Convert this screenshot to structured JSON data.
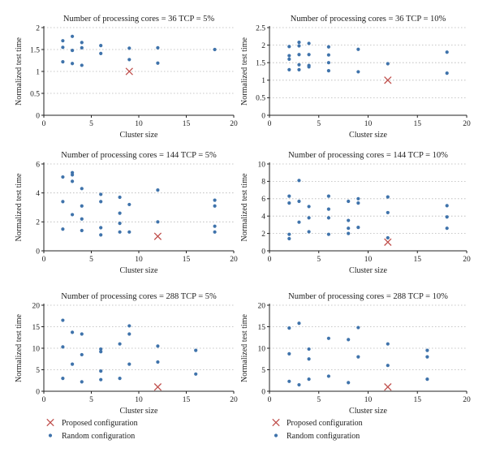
{
  "colors": {
    "random": "#3f73ab",
    "proposed": "#c0504d",
    "grid": "#b5b5b5",
    "axis": "#222222"
  },
  "legend": {
    "left": [
      {
        "marker": "cross",
        "label": "Proposed configuration"
      },
      {
        "marker": "dot",
        "label": "Random configuration"
      }
    ],
    "right": [
      {
        "marker": "cross",
        "label": "Proposed configuration"
      },
      {
        "marker": "dot",
        "label": "Random configuration"
      }
    ]
  },
  "chart_data": [
    {
      "type": "scatter",
      "title": "Number of processing cores = 36 TCP = 5%",
      "xlabel": "Cluster size",
      "ylabel": "Normalized test time",
      "xlim": [
        0,
        20
      ],
      "ylim": [
        0,
        2
      ],
      "xticks": [
        0,
        5,
        10,
        15,
        20
      ],
      "yticks": [
        0,
        0.5,
        1,
        1.5,
        2
      ],
      "ytick_labels": [
        "0",
        "0.5",
        "1",
        "1.5",
        "2"
      ],
      "grid": "horizontal-dotted",
      "series": [
        {
          "marker": "dot",
          "points": [
            [
              2,
              1.7
            ],
            [
              2,
              1.55
            ],
            [
              2,
              1.22
            ],
            [
              3,
              1.8
            ],
            [
              3,
              1.48
            ],
            [
              3,
              1.18
            ],
            [
              4,
              1.66
            ],
            [
              4,
              1.54
            ],
            [
              4,
              1.14
            ],
            [
              6,
              1.59
            ],
            [
              6,
              1.41
            ],
            [
              9,
              1.53
            ],
            [
              9,
              1.27
            ],
            [
              12,
              1.54
            ],
            [
              12,
              1.19
            ],
            [
              18,
              1.5
            ]
          ]
        },
        {
          "marker": "cross",
          "points": [
            [
              9,
              1.0
            ]
          ]
        }
      ]
    },
    {
      "type": "scatter",
      "title": "Number of processing cores = 36 TCP = 10%",
      "xlabel": "Cluster size",
      "ylabel": "Normalized test time",
      "xlim": [
        0,
        20
      ],
      "ylim": [
        0,
        2.5
      ],
      "xticks": [
        0,
        5,
        10,
        15,
        20
      ],
      "yticks": [
        0,
        0.5,
        1,
        1.5,
        2,
        2.5
      ],
      "ytick_labels": [
        "0",
        "0.5",
        "1",
        "1.5",
        "2",
        "2.5"
      ],
      "grid": "horizontal-dotted",
      "series": [
        {
          "marker": "dot",
          "points": [
            [
              2,
              1.96
            ],
            [
              2,
              1.7
            ],
            [
              2,
              1.6
            ],
            [
              2,
              1.3
            ],
            [
              3,
              2.08
            ],
            [
              3,
              1.98
            ],
            [
              3,
              1.73
            ],
            [
              3,
              1.44
            ],
            [
              3,
              1.3
            ],
            [
              4,
              2.05
            ],
            [
              4,
              1.73
            ],
            [
              4,
              1.42
            ],
            [
              4,
              1.38
            ],
            [
              6,
              1.95
            ],
            [
              6,
              1.72
            ],
            [
              6,
              1.5
            ],
            [
              6,
              1.27
            ],
            [
              9,
              1.88
            ],
            [
              9,
              1.24
            ],
            [
              12,
              1.47
            ],
            [
              18,
              1.8
            ],
            [
              18,
              1.2
            ]
          ]
        },
        {
          "marker": "cross",
          "points": [
            [
              12,
              1.0
            ]
          ]
        }
      ]
    },
    {
      "type": "scatter",
      "title": "Number of processing cores = 144 TCP = 5%",
      "xlabel": "Cluster size",
      "ylabel": "Normalized test time",
      "xlim": [
        0,
        20
      ],
      "ylim": [
        0,
        6
      ],
      "xticks": [
        0,
        5,
        10,
        15,
        20
      ],
      "yticks": [
        0,
        2,
        4,
        6
      ],
      "ytick_labels": [
        "0",
        "2",
        "4",
        "6"
      ],
      "grid": "horizontal-dotted",
      "series": [
        {
          "marker": "dot",
          "points": [
            [
              2,
              5.1
            ],
            [
              2,
              3.4
            ],
            [
              2,
              1.5
            ],
            [
              3,
              5.4
            ],
            [
              3,
              5.25
            ],
            [
              3,
              4.8
            ],
            [
              3,
              2.5
            ],
            [
              4,
              4.3
            ],
            [
              4,
              3.1
            ],
            [
              4,
              2.2
            ],
            [
              4,
              1.4
            ],
            [
              6,
              3.9
            ],
            [
              6,
              3.4
            ],
            [
              6,
              1.6
            ],
            [
              6,
              1.1
            ],
            [
              8,
              3.7
            ],
            [
              8,
              2.6
            ],
            [
              8,
              1.9
            ],
            [
              8,
              1.3
            ],
            [
              9,
              3.2
            ],
            [
              9,
              1.3
            ],
            [
              12,
              4.2
            ],
            [
              12,
              2.0
            ],
            [
              18,
              3.5
            ],
            [
              18,
              3.1
            ],
            [
              18,
              1.7
            ],
            [
              18,
              1.3
            ]
          ]
        },
        {
          "marker": "cross",
          "points": [
            [
              12,
              1.0
            ]
          ]
        }
      ]
    },
    {
      "type": "scatter",
      "title": "Number of processing cores = 144 TCP = 10%",
      "xlabel": "Cluster size",
      "ylabel": "Normalized test time",
      "xlim": [
        0,
        20
      ],
      "ylim": [
        0,
        10
      ],
      "xticks": [
        0,
        5,
        10,
        15,
        20
      ],
      "yticks": [
        0,
        2,
        4,
        6,
        8,
        10
      ],
      "ytick_labels": [
        "0",
        "2",
        "4",
        "6",
        "8",
        "10"
      ],
      "grid": "horizontal-dotted",
      "series": [
        {
          "marker": "dot",
          "points": [
            [
              2,
              6.3
            ],
            [
              2,
              5.5
            ],
            [
              2,
              1.9
            ],
            [
              2,
              1.4
            ],
            [
              3,
              8.1
            ],
            [
              3,
              5.7
            ],
            [
              3,
              3.3
            ],
            [
              4,
              5.1
            ],
            [
              4,
              3.8
            ],
            [
              4,
              2.2
            ],
            [
              6,
              6.3
            ],
            [
              6,
              4.8
            ],
            [
              6,
              3.8
            ],
            [
              6,
              1.9
            ],
            [
              8,
              5.7
            ],
            [
              8,
              3.5
            ],
            [
              8,
              2.6
            ],
            [
              8,
              2.0
            ],
            [
              9,
              6.0
            ],
            [
              9,
              5.5
            ],
            [
              9,
              2.7
            ],
            [
              12,
              6.2
            ],
            [
              12,
              4.4
            ],
            [
              12,
              1.5
            ],
            [
              18,
              5.2
            ],
            [
              18,
              3.9
            ],
            [
              18,
              2.6
            ]
          ]
        },
        {
          "marker": "cross",
          "points": [
            [
              12,
              1.0
            ]
          ]
        }
      ]
    },
    {
      "type": "scatter",
      "title": "Number of processing cores = 288 TCP = 5%",
      "xlabel": "Cluster size",
      "ylabel": "Normalized test time",
      "xlim": [
        0,
        20
      ],
      "ylim": [
        0,
        20
      ],
      "xticks": [
        0,
        5,
        10,
        15,
        20
      ],
      "yticks": [
        0,
        5,
        10,
        15,
        20
      ],
      "ytick_labels": [
        "0",
        "5",
        "10",
        "15",
        "20"
      ],
      "grid": "horizontal-dotted",
      "series": [
        {
          "marker": "dot",
          "points": [
            [
              2,
              16.5
            ],
            [
              2,
              10.3
            ],
            [
              2,
              3.0
            ],
            [
              3,
              13.7
            ],
            [
              3,
              6.3
            ],
            [
              4,
              13.3
            ],
            [
              4,
              8.5
            ],
            [
              4,
              2.2
            ],
            [
              6,
              9.8
            ],
            [
              6,
              9.2
            ],
            [
              6,
              4.7
            ],
            [
              6,
              2.7
            ],
            [
              8,
              11.0
            ],
            [
              8,
              3.0
            ],
            [
              9,
              15.2
            ],
            [
              9,
              13.3
            ],
            [
              9,
              6.3
            ],
            [
              12,
              10.5
            ],
            [
              12,
              6.8
            ],
            [
              16,
              9.5
            ],
            [
              16,
              4.0
            ]
          ]
        },
        {
          "marker": "cross",
          "points": [
            [
              12,
              1.0
            ]
          ]
        }
      ]
    },
    {
      "type": "scatter",
      "title": "Number of processing cores = 288 TCP = 10%",
      "xlabel": "Cluster size",
      "ylabel": "Normalized test time",
      "xlim": [
        0,
        20
      ],
      "ylim": [
        0,
        20
      ],
      "xticks": [
        0,
        5,
        10,
        15,
        20
      ],
      "yticks": [
        0,
        5,
        10,
        15,
        20
      ],
      "ytick_labels": [
        "0",
        "5",
        "10",
        "15",
        "20"
      ],
      "grid": "horizontal-dotted",
      "series": [
        {
          "marker": "dot",
          "points": [
            [
              2,
              14.7
            ],
            [
              2,
              8.7
            ],
            [
              2,
              2.3
            ],
            [
              3,
              15.8
            ],
            [
              3,
              1.5
            ],
            [
              4,
              9.8
            ],
            [
              4,
              7.5
            ],
            [
              4,
              2.8
            ],
            [
              6,
              12.3
            ],
            [
              6,
              3.5
            ],
            [
              8,
              12.0
            ],
            [
              8,
              2.0
            ],
            [
              9,
              14.8
            ],
            [
              9,
              8.0
            ],
            [
              12,
              11.0
            ],
            [
              12,
              6.0
            ],
            [
              16,
              9.5
            ],
            [
              16,
              8.0
            ],
            [
              16,
              2.8
            ]
          ]
        },
        {
          "marker": "cross",
          "points": [
            [
              12,
              1.0
            ]
          ]
        }
      ]
    }
  ]
}
